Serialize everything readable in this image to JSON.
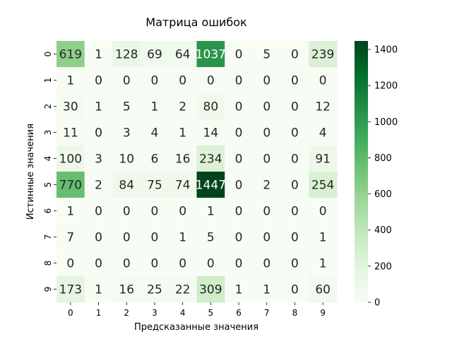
{
  "chart_data": {
    "type": "heatmap",
    "title": "Матрица ошибок",
    "xlabel": "Предсказанные значения",
    "ylabel": "Истинные значения",
    "x_categories": [
      "0",
      "1",
      "2",
      "3",
      "4",
      "5",
      "6",
      "7",
      "8",
      "9"
    ],
    "y_categories": [
      "0",
      "1",
      "2",
      "3",
      "4",
      "5",
      "6",
      "7",
      "8",
      "9"
    ],
    "values": [
      [
        619,
        1,
        128,
        69,
        64,
        1037,
        0,
        5,
        0,
        239
      ],
      [
        1,
        0,
        0,
        0,
        0,
        0,
        0,
        0,
        0,
        0
      ],
      [
        30,
        1,
        5,
        1,
        2,
        80,
        0,
        0,
        0,
        12
      ],
      [
        11,
        0,
        3,
        4,
        1,
        14,
        0,
        0,
        0,
        4
      ],
      [
        100,
        3,
        10,
        6,
        16,
        234,
        0,
        0,
        0,
        91
      ],
      [
        770,
        2,
        84,
        75,
        74,
        1447,
        0,
        2,
        0,
        254
      ],
      [
        1,
        0,
        0,
        0,
        0,
        1,
        0,
        0,
        0,
        0
      ],
      [
        7,
        0,
        0,
        0,
        1,
        5,
        0,
        0,
        0,
        1
      ],
      [
        0,
        0,
        0,
        0,
        0,
        0,
        0,
        0,
        0,
        1
      ],
      [
        173,
        1,
        16,
        25,
        22,
        309,
        1,
        1,
        0,
        60
      ]
    ],
    "colorbar_ticks": [
      "0",
      "200",
      "400",
      "600",
      "800",
      "1000",
      "1200",
      "1400"
    ],
    "vmin": 0,
    "vmax": 1447,
    "colormap": "Greens",
    "colors": {
      "low": "#f7fcf5",
      "high": "#00441b"
    }
  }
}
